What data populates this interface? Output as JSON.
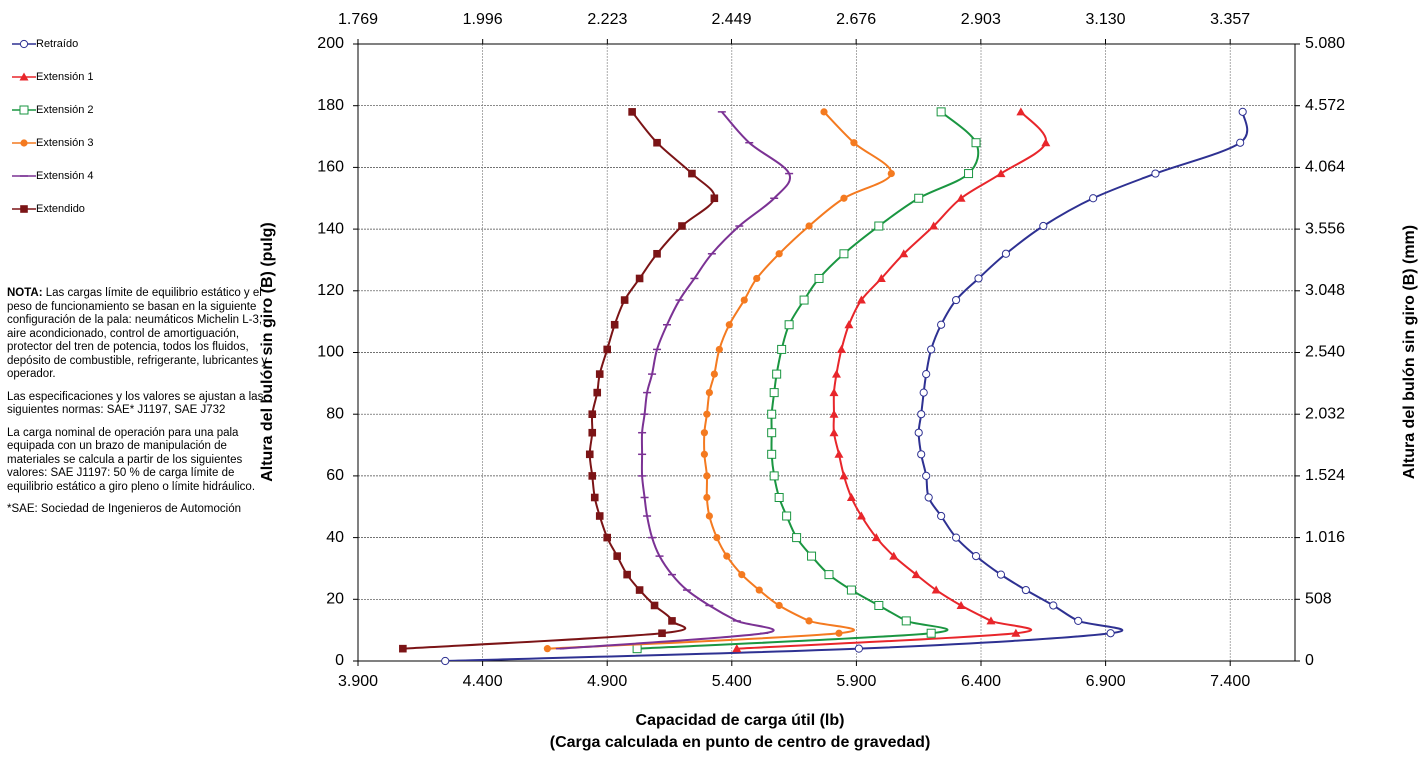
{
  "chart_data": {
    "type": "line",
    "xlabel": [
      "Capacidad de carga útil (lb)",
      "(Carga calculada en punto de centro de gravedad)"
    ],
    "ylabel": "Altura del bulón sin giro (B) (pulg)",
    "y2label": "Altura del bulón sin giro (B) (mm)",
    "xlim": [
      3900,
      7660
    ],
    "xticks": [
      {
        "value": 3900,
        "label": "3.900"
      },
      {
        "value": 4400,
        "label": "4.400"
      },
      {
        "value": 4900,
        "label": "4.900"
      },
      {
        "value": 5400,
        "label": "5.400"
      },
      {
        "value": 5900,
        "label": "5.900"
      },
      {
        "value": 6400,
        "label": "6.400"
      },
      {
        "value": 6900,
        "label": "6.900"
      },
      {
        "value": 7400,
        "label": "7.400"
      }
    ],
    "x2lim": [
      1769,
      3475
    ],
    "x2ticks": [
      {
        "value": 1769,
        "label": "1.769"
      },
      {
        "value": 1996,
        "label": "1.996"
      },
      {
        "value": 2223,
        "label": "2.223"
      },
      {
        "value": 2449,
        "label": "2.449"
      },
      {
        "value": 2676,
        "label": "2.676"
      },
      {
        "value": 2903,
        "label": "2.903"
      },
      {
        "value": 3130,
        "label": "3.130"
      },
      {
        "value": 3357,
        "label": "3.357"
      }
    ],
    "ylim": [
      0,
      200
    ],
    "yticks": [
      0,
      20,
      40,
      60,
      80,
      100,
      120,
      140,
      160,
      180,
      200
    ],
    "y2lim": [
      0,
      5080
    ],
    "y2ticks": [
      0,
      508,
      {
        "value": 1016,
        "label": "1.016"
      },
      {
        "value": 1524,
        "label": "1.524"
      },
      {
        "value": 2032,
        "label": "2.032"
      },
      {
        "value": 2540,
        "label": "2.540"
      },
      {
        "value": 3048,
        "label": "3.048"
      },
      {
        "value": 3556,
        "label": "3.556"
      },
      {
        "value": 4064,
        "label": "4.064"
      },
      {
        "value": 4572,
        "label": "4.572"
      },
      {
        "value": 5080,
        "label": "5.080"
      }
    ],
    "grid": true,
    "smooth": true,
    "legend": "upper left",
    "series": [
      {
        "name": "Retraído",
        "color": "#2e3192",
        "marker": "circle-open",
        "x": [
          4250,
          5910,
          6920,
          6790,
          6690,
          6580,
          6480,
          6380,
          6300,
          6240,
          6190,
          6180,
          6160,
          6150,
          6160,
          6170,
          6180,
          6200,
          6240,
          6300,
          6390,
          6500,
          6650,
          6850,
          7100,
          7440,
          7450
        ],
        "y": [
          0,
          4,
          9,
          13,
          18,
          23,
          28,
          34,
          40,
          47,
          53,
          60,
          67,
          74,
          80,
          87,
          93,
          101,
          109,
          117,
          124,
          132,
          141,
          150,
          158,
          168,
          178
        ]
      },
      {
        "name": "Extensión 1",
        "color": "#e8262b",
        "marker": "triangle",
        "x": [
          5420,
          6540,
          6440,
          6320,
          6220,
          6140,
          6050,
          5980,
          5920,
          5880,
          5850,
          5830,
          5810,
          5810,
          5810,
          5820,
          5840,
          5870,
          5920,
          6000,
          6090,
          6210,
          6320,
          6480,
          6660,
          6560
        ],
        "y": [
          4,
          9,
          13,
          18,
          23,
          28,
          34,
          40,
          47,
          53,
          60,
          67,
          74,
          80,
          87,
          93,
          101,
          109,
          117,
          124,
          132,
          141,
          150,
          158,
          168,
          178
        ]
      },
      {
        "name": "Extensión 2",
        "color": "#1a9641",
        "marker": "square-open",
        "x": [
          5020,
          6200,
          6100,
          5990,
          5880,
          5790,
          5720,
          5660,
          5620,
          5590,
          5570,
          5560,
          5560,
          5560,
          5570,
          5580,
          5600,
          5630,
          5690,
          5750,
          5850,
          5990,
          6150,
          6350,
          6380,
          6240
        ],
        "y": [
          4,
          9,
          13,
          18,
          23,
          28,
          34,
          40,
          47,
          53,
          60,
          67,
          74,
          80,
          87,
          93,
          101,
          109,
          117,
          124,
          132,
          141,
          150,
          158,
          168,
          178
        ]
      },
      {
        "name": "Extensión 3",
        "color": "#f47a20",
        "marker": "circle",
        "x": [
          4660,
          5830,
          5710,
          5590,
          5510,
          5440,
          5380,
          5340,
          5310,
          5300,
          5300,
          5290,
          5290,
          5300,
          5310,
          5330,
          5350,
          5390,
          5450,
          5500,
          5590,
          5710,
          5850,
          6040,
          5890,
          5770
        ],
        "y": [
          4,
          9,
          13,
          18,
          23,
          28,
          34,
          40,
          47,
          53,
          60,
          67,
          74,
          80,
          87,
          93,
          101,
          109,
          117,
          124,
          132,
          141,
          150,
          158,
          168,
          178
        ]
      },
      {
        "name": "Extensión 4",
        "color": "#7b3294",
        "marker": "dash",
        "x": [
          4710,
          5530,
          5420,
          5310,
          5220,
          5160,
          5110,
          5080,
          5060,
          5050,
          5040,
          5040,
          5040,
          5050,
          5060,
          5080,
          5100,
          5140,
          5190,
          5250,
          5320,
          5430,
          5570,
          5630,
          5470,
          5360
        ],
        "y": [
          4,
          9,
          13,
          18,
          23,
          28,
          34,
          40,
          47,
          53,
          60,
          67,
          74,
          80,
          87,
          93,
          101,
          109,
          117,
          124,
          132,
          141,
          150,
          158,
          168,
          178
        ]
      },
      {
        "name": "Extendido",
        "color": "#7b1416",
        "marker": "square",
        "x": [
          4080,
          5120,
          5160,
          5090,
          5030,
          4980,
          4940,
          4900,
          4870,
          4850,
          4840,
          4830,
          4840,
          4840,
          4860,
          4870,
          4900,
          4930,
          4970,
          5030,
          5100,
          5200,
          5330,
          5240,
          5100,
          5000
        ],
        "y": [
          4,
          9,
          13,
          18,
          23,
          28,
          34,
          40,
          47,
          53,
          60,
          67,
          74,
          80,
          87,
          93,
          101,
          109,
          117,
          124,
          132,
          141,
          150,
          158,
          168,
          178
        ]
      }
    ]
  },
  "notes": [
    {
      "bold": "NOTA:",
      "text": " Las cargas límite de equilibrio estático y el peso de funcionamiento se basan en la siguiente configuración de la pala:  neumáticos Michelin L-3, aire acondicionado, control de amortiguación, protector del tren de potencia, todos los fluidos, depósito de combustible, refrigerante, lubricantes y operador."
    },
    {
      "text": "Las especificaciones y los valores se ajustan a las siguientes normas: SAE* J1197, SAE J732"
    },
    {
      "text": "La carga nominal de operación para una pala equipada con un brazo de manipulación de materiales se calcula a partir de los siguientes valores: SAE J1197:  50 % de carga límite de equilibrio estático a giro pleno o límite hidráulico."
    },
    {
      "text": "*SAE: Sociedad de Ingenieros de Automoción"
    }
  ]
}
